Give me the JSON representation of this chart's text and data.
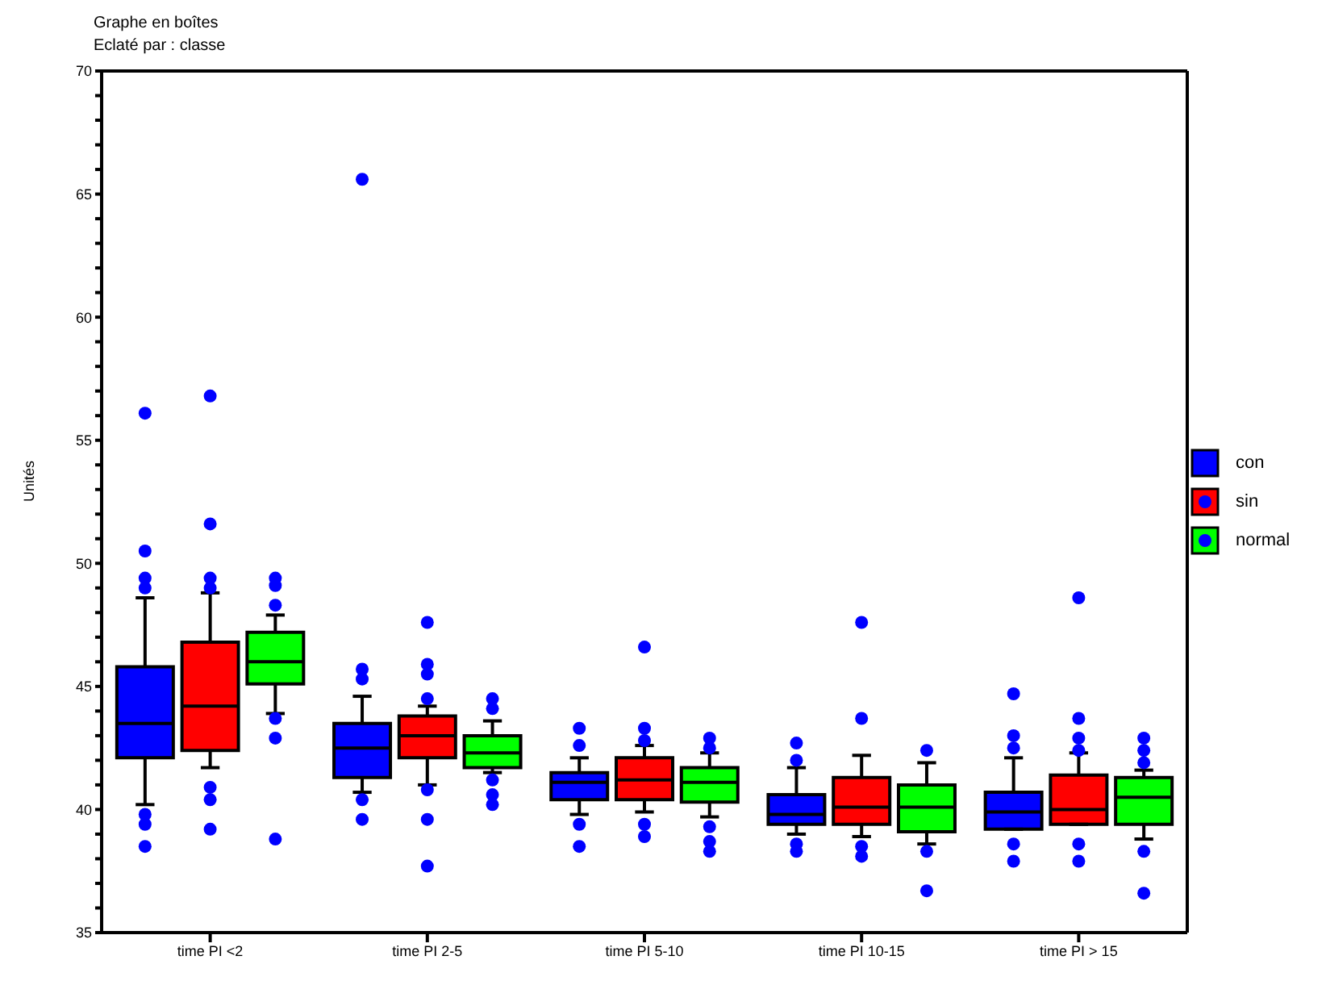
{
  "chart_data": {
    "type": "box",
    "title": "Graphe en boîtes",
    "subtitle": "Eclaté par : classe",
    "ylabel": "Unités",
    "categories": [
      "time PI <2",
      "time PI 2-5",
      "time PI 5-10",
      "time PI 10-15",
      "time PI > 15"
    ],
    "ylim": [
      35,
      70
    ],
    "yticks": [
      35,
      {
        "value": 36,
        "label": null
      },
      {
        "value": 37,
        "label": null
      },
      {
        "value": 38,
        "label": null
      },
      {
        "value": 39,
        "label": null
      },
      40,
      {
        "value": 41,
        "label": null
      },
      {
        "value": 42,
        "label": null
      },
      {
        "value": 43,
        "label": null
      },
      {
        "value": 44,
        "label": null
      },
      45,
      {
        "value": 46,
        "label": null
      },
      {
        "value": 47,
        "label": null
      },
      {
        "value": 48,
        "label": null
      },
      {
        "value": 49,
        "label": null
      },
      50,
      {
        "value": 51,
        "label": null
      },
      {
        "value": 52,
        "label": null
      },
      {
        "value": 53,
        "label": null
      },
      {
        "value": 54,
        "label": null
      },
      55,
      {
        "value": 56,
        "label": null
      },
      {
        "value": 57,
        "label": null
      },
      {
        "value": 58,
        "label": null
      },
      {
        "value": 59,
        "label": null
      },
      60,
      {
        "value": 61,
        "label": null
      },
      {
        "value": 62,
        "label": null
      },
      {
        "value": 63,
        "label": null
      },
      {
        "value": 64,
        "label": null
      },
      65,
      {
        "value": 66,
        "label": null
      },
      {
        "value": 67,
        "label": null
      },
      {
        "value": 68,
        "label": null
      },
      {
        "value": 69,
        "label": null
      },
      70
    ],
    "grid": false,
    "legend": "right",
    "marker": "circle",
    "series": [
      {
        "name": "con",
        "color": "#0000ff",
        "boxes": [
          {
            "low": 40.2,
            "q1": 42.1,
            "median": 43.5,
            "q3": 45.8,
            "high": 48.6,
            "outliers": [
              56.1,
              50.5,
              49.4,
              49.0,
              39.8,
              39.4,
              38.5
            ]
          },
          {
            "low": 40.7,
            "q1": 41.3,
            "median": 42.5,
            "q3": 43.5,
            "high": 44.6,
            "outliers": [
              65.6,
              45.7,
              45.3,
              40.4,
              39.6
            ]
          },
          {
            "low": 39.8,
            "q1": 40.4,
            "median": 41.1,
            "q3": 41.5,
            "high": 42.1,
            "outliers": [
              43.3,
              42.6,
              39.4,
              38.5
            ]
          },
          {
            "low": 39.0,
            "q1": 39.4,
            "median": 39.8,
            "q3": 40.6,
            "high": 41.7,
            "outliers": [
              42.7,
              42.0,
              38.6,
              38.3
            ]
          },
          {
            "low": 39.2,
            "q1": 39.2,
            "median": 39.9,
            "q3": 40.7,
            "high": 42.1,
            "outliers": [
              44.7,
              43.0,
              42.5,
              38.6,
              37.9
            ]
          }
        ]
      },
      {
        "name": "sin",
        "color": "#ff0000",
        "boxes": [
          {
            "low": 41.7,
            "q1": 42.4,
            "median": 44.2,
            "q3": 46.8,
            "high": 48.8,
            "outliers": [
              56.8,
              51.6,
              49.4,
              49.0,
              40.9,
              40.4,
              39.2
            ]
          },
          {
            "low": 41.0,
            "q1": 42.1,
            "median": 43.0,
            "q3": 43.8,
            "high": 44.2,
            "outliers": [
              47.6,
              45.9,
              45.5,
              44.5,
              40.8,
              39.6,
              37.7
            ]
          },
          {
            "low": 39.9,
            "q1": 40.4,
            "median": 41.2,
            "q3": 42.1,
            "high": 42.6,
            "outliers": [
              46.6,
              43.3,
              42.8,
              39.4,
              38.9
            ]
          },
          {
            "low": 38.9,
            "q1": 39.4,
            "median": 40.1,
            "q3": 41.3,
            "high": 42.2,
            "outliers": [
              47.6,
              43.7,
              38.5,
              38.1
            ]
          },
          {
            "low": 39.4,
            "q1": 39.4,
            "median": 40.0,
            "q3": 41.4,
            "high": 42.3,
            "outliers": [
              48.6,
              43.7,
              42.9,
              42.4,
              38.6,
              37.9
            ]
          }
        ]
      },
      {
        "name": "normal",
        "color": "#00ff00",
        "boxes": [
          {
            "low": 43.9,
            "q1": 45.1,
            "median": 46.0,
            "q3": 47.2,
            "high": 47.9,
            "outliers": [
              49.4,
              49.1,
              48.3,
              43.7,
              42.9,
              38.8
            ]
          },
          {
            "low": 41.5,
            "q1": 41.7,
            "median": 42.3,
            "q3": 43.0,
            "high": 43.6,
            "outliers": [
              44.5,
              44.1,
              41.2,
              40.6,
              40.2
            ]
          },
          {
            "low": 39.7,
            "q1": 40.3,
            "median": 41.1,
            "q3": 41.7,
            "high": 42.3,
            "outliers": [
              42.9,
              42.5,
              39.3,
              38.7,
              38.3
            ]
          },
          {
            "low": 38.6,
            "q1": 39.1,
            "median": 40.1,
            "q3": 41.0,
            "high": 41.9,
            "outliers": [
              42.4,
              38.3,
              36.7
            ]
          },
          {
            "low": 38.8,
            "q1": 39.4,
            "median": 40.5,
            "q3": 41.3,
            "high": 41.6,
            "outliers": [
              42.9,
              42.4,
              41.9,
              38.3,
              36.6
            ]
          }
        ]
      }
    ]
  }
}
